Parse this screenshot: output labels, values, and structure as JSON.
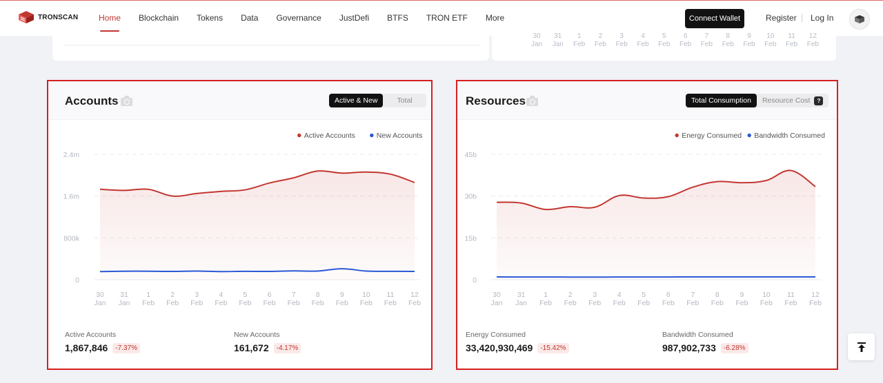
{
  "brand": {
    "name": "TRONSCAN"
  },
  "nav": {
    "items": [
      {
        "label": "Home",
        "active": true
      },
      {
        "label": "Blockchain"
      },
      {
        "label": "Tokens"
      },
      {
        "label": "Data"
      },
      {
        "label": "Governance"
      },
      {
        "label": "JustDefi"
      },
      {
        "label": "BTFS"
      },
      {
        "label": "TRON ETF"
      },
      {
        "label": "More"
      }
    ],
    "connect_wallet": "Connect Wallet",
    "register": "Register",
    "login": "Log In"
  },
  "prev_card_ticks": [
    {
      "day": "30",
      "month": "Jan"
    },
    {
      "day": "31",
      "month": "Jan"
    },
    {
      "day": "1",
      "month": "Feb"
    },
    {
      "day": "2",
      "month": "Feb"
    },
    {
      "day": "3",
      "month": "Feb"
    },
    {
      "day": "4",
      "month": "Feb"
    },
    {
      "day": "5",
      "month": "Feb"
    },
    {
      "day": "6",
      "month": "Feb"
    },
    {
      "day": "7",
      "month": "Feb"
    },
    {
      "day": "8",
      "month": "Feb"
    },
    {
      "day": "9",
      "month": "Feb"
    },
    {
      "day": "10",
      "month": "Feb"
    },
    {
      "day": "11",
      "month": "Feb"
    },
    {
      "day": "12",
      "month": "Feb"
    }
  ],
  "accounts": {
    "title": "Accounts",
    "toggle": {
      "options": [
        "Active & New",
        "Total"
      ],
      "selected": "Active & New"
    },
    "stats": [
      {
        "label": "Active Accounts",
        "value": "1,867,846",
        "change": "-7.37%"
      },
      {
        "label": "New Accounts",
        "value": "161,672",
        "change": "-4.17%"
      }
    ]
  },
  "resources": {
    "title": "Resources",
    "toggle": {
      "options": [
        "Total Consumption",
        "Resource Cost"
      ],
      "selected": "Total Consumption",
      "help": "?"
    },
    "stats": [
      {
        "label": "Energy Consumed",
        "value": "33,420,930,469",
        "change": "-15.42%"
      },
      {
        "label": "Bandwidth Consumed",
        "value": "987,902,733",
        "change": "-6.28%"
      }
    ]
  },
  "chart_data": [
    {
      "type": "line",
      "x": [
        {
          "day": "30",
          "month": "Jan"
        },
        {
          "day": "31",
          "month": "Jan"
        },
        {
          "day": "1",
          "month": "Feb"
        },
        {
          "day": "2",
          "month": "Feb"
        },
        {
          "day": "3",
          "month": "Feb"
        },
        {
          "day": "4",
          "month": "Feb"
        },
        {
          "day": "5",
          "month": "Feb"
        },
        {
          "day": "6",
          "month": "Feb"
        },
        {
          "day": "7",
          "month": "Feb"
        },
        {
          "day": "8",
          "month": "Feb"
        },
        {
          "day": "9",
          "month": "Feb"
        },
        {
          "day": "10",
          "month": "Feb"
        },
        {
          "day": "11",
          "month": "Feb"
        },
        {
          "day": "12",
          "month": "Feb"
        }
      ],
      "yticks": [
        "0",
        "800k",
        "1.6m",
        "2.4m"
      ],
      "ylim": [
        0,
        2400000
      ],
      "grid": true,
      "legend": "top-right",
      "series": [
        {
          "name": "Active Accounts",
          "color": "#c23631",
          "area": true,
          "values": [
            1730000,
            1710000,
            1730000,
            1600000,
            1650000,
            1690000,
            1720000,
            1850000,
            1950000,
            2080000,
            2040000,
            2060000,
            2020000,
            1860000
          ]
        },
        {
          "name": "New Accounts",
          "color": "#2a58d6",
          "area": false,
          "values": [
            155000,
            162000,
            162000,
            158000,
            165000,
            155000,
            160000,
            158000,
            168000,
            165000,
            210000,
            165000,
            160000,
            158000
          ]
        }
      ]
    },
    {
      "type": "line",
      "x": [
        {
          "day": "30",
          "month": "Jan"
        },
        {
          "day": "31",
          "month": "Jan"
        },
        {
          "day": "1",
          "month": "Feb"
        },
        {
          "day": "2",
          "month": "Feb"
        },
        {
          "day": "3",
          "month": "Feb"
        },
        {
          "day": "4",
          "month": "Feb"
        },
        {
          "day": "5",
          "month": "Feb"
        },
        {
          "day": "6",
          "month": "Feb"
        },
        {
          "day": "7",
          "month": "Feb"
        },
        {
          "day": "8",
          "month": "Feb"
        },
        {
          "day": "9",
          "month": "Feb"
        },
        {
          "day": "10",
          "month": "Feb"
        },
        {
          "day": "11",
          "month": "Feb"
        },
        {
          "day": "12",
          "month": "Feb"
        }
      ],
      "yticks": [
        "0",
        "15b",
        "30b",
        "45b"
      ],
      "ylim": [
        0,
        45000000000
      ],
      "grid": true,
      "legend": "top-right",
      "series": [
        {
          "name": "Energy Consumed",
          "color": "#c23631",
          "area": true,
          "values": [
            27800000000,
            27500000000,
            25200000000,
            26200000000,
            26000000000,
            30200000000,
            29300000000,
            29800000000,
            33200000000,
            35200000000,
            34800000000,
            35600000000,
            39200000000,
            33400000000
          ]
        },
        {
          "name": "Bandwidth Consumed",
          "color": "#2a58d6",
          "area": false,
          "values": [
            980000000,
            960000000,
            950000000,
            940000000,
            930000000,
            950000000,
            960000000,
            970000000,
            980000000,
            990000000,
            985000000,
            980000000,
            990000000,
            988000000
          ]
        }
      ]
    }
  ]
}
